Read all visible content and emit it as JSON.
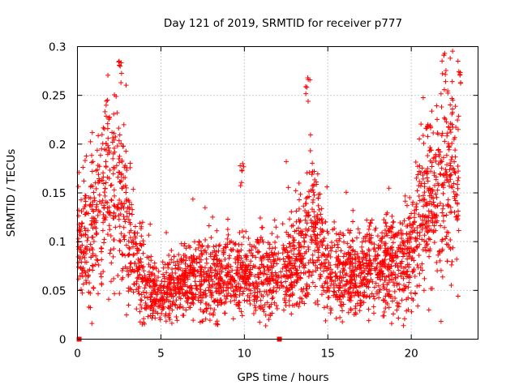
{
  "chart_data": {
    "type": "scatter",
    "title": "Day 121 of 2019, SRMTID for receiver p777",
    "xlabel": "GPS time / hours",
    "ylabel": "SRMTID / TECUs",
    "xlim": [
      0,
      24
    ],
    "ylim": [
      0,
      0.3
    ],
    "xticks": [
      0,
      5,
      10,
      15,
      20
    ],
    "xtick_labels": [
      "0",
      "5",
      "10",
      "15",
      "20"
    ],
    "yticks": [
      0,
      0.05,
      0.1,
      0.15,
      0.2,
      0.25,
      0.3
    ],
    "ytick_labels": [
      "0",
      "0.05",
      "0.1",
      "0.15",
      "0.2",
      "0.25",
      "0.3"
    ],
    "grid": true,
    "marker": "+",
    "color": "#ff0000",
    "zero_markers_x": [
      0.1,
      12.1
    ],
    "trend": {
      "hours": [
        0,
        1,
        1.5,
        2,
        2.5,
        3,
        3.5,
        4,
        5,
        6,
        7,
        8,
        9,
        10,
        11,
        12,
        12.8,
        13.5,
        14,
        14.5,
        15,
        16,
        17,
        18,
        19,
        20,
        20.5,
        21,
        21.5,
        22,
        22.5,
        23
      ],
      "srmtid": [
        0.095,
        0.11,
        0.14,
        0.16,
        0.15,
        0.12,
        0.08,
        0.06,
        0.045,
        0.055,
        0.065,
        0.06,
        0.06,
        0.065,
        0.07,
        0.065,
        0.07,
        0.09,
        0.12,
        0.1,
        0.07,
        0.065,
        0.07,
        0.075,
        0.08,
        0.09,
        0.12,
        0.13,
        0.14,
        0.16,
        0.18,
        0.14
      ]
    },
    "peaks": [
      {
        "hour": 1.8,
        "srmtid": 0.245
      },
      {
        "hour": 2.5,
        "srmtid": 0.285
      },
      {
        "hour": 9.9,
        "srmtid": 0.18
      },
      {
        "hour": 13.8,
        "srmtid": 0.268
      },
      {
        "hour": 21.0,
        "srmtid": 0.22
      },
      {
        "hour": 22.0,
        "srmtid": 0.293
      },
      {
        "hour": 22.8,
        "srmtid": 0.285
      }
    ],
    "num_points": 3000
  }
}
